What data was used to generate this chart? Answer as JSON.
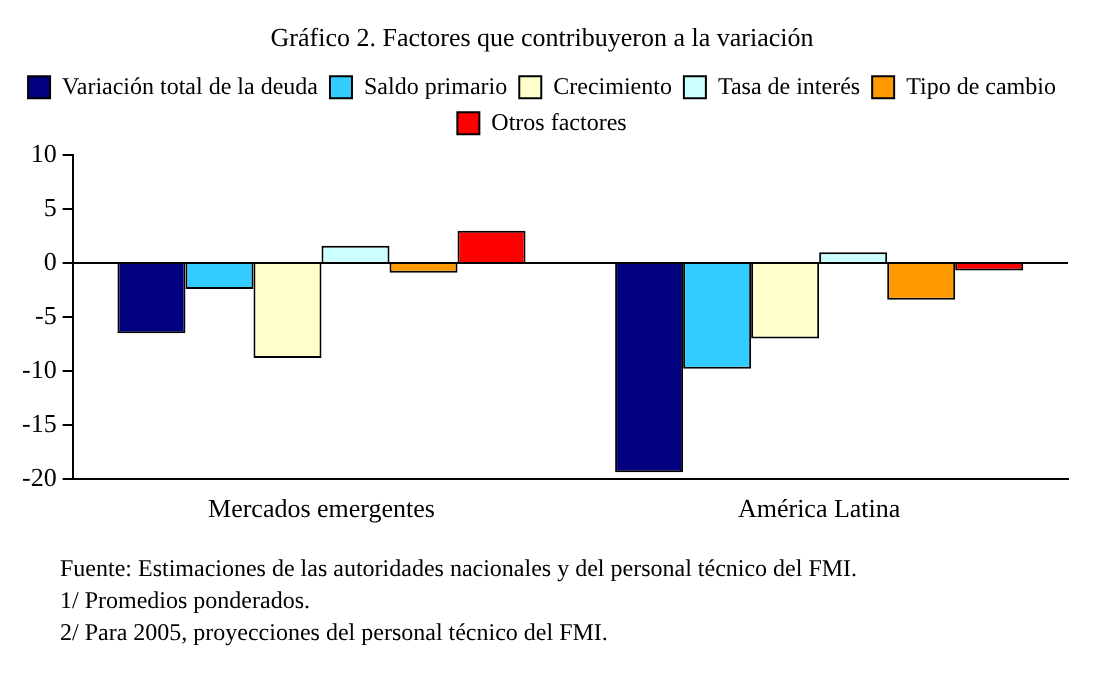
{
  "chart_data": {
    "type": "bar",
    "title": "Gráfico 2. Factores que contribuyeron a la variación",
    "categories": [
      "Mercados emergentes",
      "América Latina"
    ],
    "series": [
      {
        "name": "Variación total de la deuda",
        "color": "#000080",
        "values": [
          -6.5,
          -19.4
        ]
      },
      {
        "name": "Saldo primario",
        "color": "#33ccff",
        "values": [
          -2.4,
          -9.8
        ]
      },
      {
        "name": "Crecimiento",
        "color": "#ffffcc",
        "values": [
          -8.8,
          -7.0
        ]
      },
      {
        "name": "Tasa de interés",
        "color": "#ccffff",
        "values": [
          1.6,
          1.0
        ]
      },
      {
        "name": "Tipo de cambio",
        "color": "#ff9900",
        "values": [
          -0.9,
          -3.4
        ]
      },
      {
        "name": "Otros factores",
        "color": "#ff0000",
        "values": [
          3.0,
          -0.7
        ]
      }
    ],
    "ylim": [
      -20,
      10
    ],
    "yticks": [
      -20,
      -15,
      -10,
      -5,
      0,
      5,
      10
    ],
    "grid": false,
    "legend": "top",
    "ref_lines": [
      {
        "axis": "y",
        "value": 0,
        "color": "#000000"
      }
    ],
    "annotations": [
      "Fuente: Estimaciones de las autoridades nacionales y del personal técnico del FMI.",
      "1/ Promedios ponderados.",
      "2/ Para 2005, proyecciones del personal técnico del FMI."
    ]
  }
}
